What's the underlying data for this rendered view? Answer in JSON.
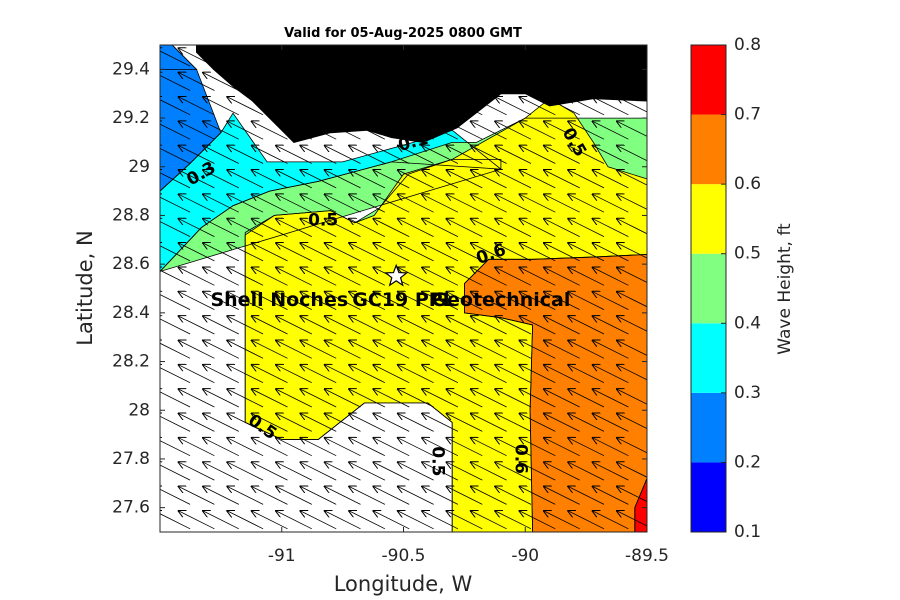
{
  "chart_data": {
    "type": "contour",
    "title": "Valid for 05-Aug-2025 0800 GMT",
    "xlabel": "Longitude, W",
    "ylabel": "Latitude, N",
    "xlim": [
      -91.5,
      -89.5
    ],
    "ylim": [
      27.5,
      29.5
    ],
    "x_ticks": [
      "-91",
      "-90.5",
      "-90",
      "-89.5"
    ],
    "x_tick_values": [
      -91,
      -90.5,
      -90,
      -89.5
    ],
    "y_ticks": [
      "27.6",
      "27.8",
      "28",
      "28.2",
      "28.4",
      "28.6",
      "28.8",
      "29",
      "29.2",
      "29.4"
    ],
    "y_tick_values": [
      27.6,
      27.8,
      28.0,
      28.2,
      28.4,
      28.6,
      28.8,
      29.0,
      29.2,
      29.4
    ],
    "colorbar": {
      "label": "Wave Height, ft",
      "levels": [
        0.1,
        0.2,
        0.3,
        0.4,
        0.5,
        0.6,
        0.7,
        0.8
      ],
      "tick_labels": [
        "0.1",
        "0.2",
        "0.3",
        "0.4",
        "0.5",
        "0.6",
        "0.7",
        "0.8"
      ],
      "colors": [
        "#0000ff",
        "#0080ff",
        "#00ffff",
        "#80ff80",
        "#ffff00",
        "#ff8000",
        "#ff0000"
      ]
    },
    "regions": [
      {
        "band": "0.1-0.2",
        "color": "#0000ff",
        "polygon": [
          [
            -91.5,
            29.5
          ],
          [
            -91.45,
            29.5
          ],
          [
            -91.35,
            29.4
          ],
          [
            -91.5,
            29.4
          ]
        ]
      },
      {
        "band": "0.2-0.3",
        "color": "#0080ff",
        "polygon": [
          [
            -91.45,
            29.5
          ],
          [
            -91.5,
            29.5
          ],
          [
            -91.5,
            28.9
          ],
          [
            -91.38,
            29.01
          ],
          [
            -91.25,
            29.14
          ],
          [
            -91.35,
            29.4
          ]
        ]
      },
      {
        "band": "0.3-0.4",
        "color": "#00ffff",
        "polygon": [
          [
            -91.5,
            28.9
          ],
          [
            -91.38,
            29.01
          ],
          [
            -91.25,
            29.14
          ],
          [
            -91.2,
            29.22
          ],
          [
            -91.06,
            29.02
          ],
          [
            -90.75,
            29.02
          ],
          [
            -90.46,
            29.1
          ],
          [
            -90.3,
            29.15
          ],
          [
            -90.1,
            28.99
          ],
          [
            -90.55,
            29.02
          ],
          [
            -90.85,
            28.94
          ],
          [
            -91.05,
            28.9
          ],
          [
            -91.2,
            28.84
          ],
          [
            -91.33,
            28.75
          ],
          [
            -91.5,
            28.57
          ]
        ]
      },
      {
        "band": "0.4-0.5",
        "color": "#80ff80",
        "polygon": [
          [
            -91.5,
            28.57
          ],
          [
            -91.33,
            28.75
          ],
          [
            -91.2,
            28.84
          ],
          [
            -91.05,
            28.9
          ],
          [
            -90.85,
            28.94
          ],
          [
            -90.55,
            29.02
          ],
          [
            -90.3,
            29.1
          ],
          [
            -90.2,
            29.1
          ],
          [
            -90.0,
            29.2
          ],
          [
            -89.5,
            29.2
          ],
          [
            -89.5,
            29.5
          ],
          [
            -89.5,
            27.5
          ],
          [
            -90.3,
            27.5
          ],
          [
            -90.3,
            27.95
          ],
          [
            -90.4,
            28.03
          ],
          [
            -90.66,
            28.03
          ],
          [
            -90.85,
            27.88
          ],
          [
            -91.0,
            27.88
          ],
          [
            -91.15,
            27.95
          ],
          [
            -91.15,
            28.73
          ],
          [
            -91.03,
            28.8
          ],
          [
            -90.8,
            28.82
          ],
          [
            -90.7,
            28.77
          ],
          [
            -90.6,
            28.83
          ],
          [
            -90.48,
            28.97
          ],
          [
            -90.3,
            29.03
          ],
          [
            -90.1,
            29.03
          ],
          [
            -90.1,
            28.99
          ]
        ]
      },
      {
        "band": "0.5-0.6",
        "color": "#ffff00",
        "polygon": [
          [
            -91.15,
            28.72
          ],
          [
            -91.03,
            28.8
          ],
          [
            -90.8,
            28.82
          ],
          [
            -90.7,
            28.77
          ],
          [
            -90.62,
            28.8
          ],
          [
            -90.5,
            28.97
          ],
          [
            -90.3,
            29.03
          ],
          [
            -90.0,
            29.2
          ],
          [
            -89.9,
            29.28
          ],
          [
            -89.8,
            29.22
          ],
          [
            -89.72,
            29.1
          ],
          [
            -89.66,
            29.0
          ],
          [
            -89.5,
            28.95
          ],
          [
            -89.5,
            28.64
          ],
          [
            -89.7,
            28.63
          ],
          [
            -89.97,
            28.62
          ],
          [
            -90.15,
            28.62
          ],
          [
            -90.25,
            28.52
          ],
          [
            -90.25,
            28.4
          ],
          [
            -90.1,
            28.38
          ],
          [
            -89.97,
            28.35
          ],
          [
            -89.98,
            28.0
          ],
          [
            -89.97,
            27.5
          ],
          [
            -90.3,
            27.5
          ],
          [
            -90.3,
            27.95
          ],
          [
            -90.4,
            28.03
          ],
          [
            -90.66,
            28.03
          ],
          [
            -90.85,
            27.88
          ],
          [
            -91.0,
            27.88
          ],
          [
            -91.15,
            27.95
          ]
        ]
      },
      {
        "band": "0.6-0.7",
        "color": "#ff8000",
        "polygon": [
          [
            -90.25,
            28.52
          ],
          [
            -90.15,
            28.62
          ],
          [
            -89.97,
            28.62
          ],
          [
            -89.7,
            28.63
          ],
          [
            -89.5,
            28.64
          ],
          [
            -89.5,
            27.72
          ],
          [
            -89.55,
            27.6
          ],
          [
            -89.55,
            27.5
          ],
          [
            -89.97,
            27.5
          ],
          [
            -89.98,
            28.0
          ],
          [
            -89.97,
            28.35
          ],
          [
            -90.1,
            28.38
          ],
          [
            -90.25,
            28.4
          ]
        ]
      },
      {
        "band": "0.7-0.8",
        "color": "#ff0000",
        "polygon": [
          [
            -89.5,
            27.72
          ],
          [
            -89.55,
            27.6
          ],
          [
            -89.55,
            27.5
          ],
          [
            -89.5,
            27.5
          ]
        ]
      }
    ],
    "land": [
      [
        [
          -91.35,
          29.5
        ],
        [
          -89.5,
          29.5
        ],
        [
          -89.5,
          29.27
        ],
        [
          -89.72,
          29.28
        ],
        [
          -89.9,
          29.25
        ],
        [
          -90.0,
          29.3
        ],
        [
          -90.1,
          29.3
        ],
        [
          -90.28,
          29.16
        ],
        [
          -90.42,
          29.1
        ],
        [
          -90.55,
          29.12
        ],
        [
          -90.65,
          29.15
        ],
        [
          -90.8,
          29.14
        ],
        [
          -90.95,
          29.1
        ],
        [
          -91.05,
          29.2
        ],
        [
          -91.12,
          29.27
        ],
        [
          -91.2,
          29.33
        ],
        [
          -91.28,
          29.4
        ],
        [
          -91.35,
          29.47
        ]
      ]
    ],
    "contour_labels": [
      {
        "text": "0.3",
        "x": -91.33,
        "y": 28.97,
        "angle": -30
      },
      {
        "text": "0.1",
        "x": -90.46,
        "y": 29.1,
        "angle": -15
      },
      {
        "text": "0.5",
        "x": -89.8,
        "y": 29.1,
        "angle": 60
      },
      {
        "text": "0.5",
        "x": -90.83,
        "y": 28.78,
        "angle": 0
      },
      {
        "text": "0.6",
        "x": -90.14,
        "y": 28.64,
        "angle": -20
      },
      {
        "text": "0.5",
        "x": -91.08,
        "y": 27.93,
        "angle": 35
      },
      {
        "text": "0.5",
        "x": -90.36,
        "y": 27.79,
        "angle": 90
      },
      {
        "text": "0.6",
        "x": -90.02,
        "y": 27.8,
        "angle": 90
      }
    ],
    "annotations": [
      {
        "text": "Shell Noches",
        "x": -91.01,
        "y": 28.45
      },
      {
        "text": "GC19 PPL",
        "x": -90.5,
        "y": 28.45
      },
      {
        "text": "Geotechnical",
        "x": -90.1,
        "y": 28.45
      }
    ],
    "marker": {
      "type": "star",
      "x": -90.53,
      "y": 28.55
    },
    "wave_direction": {
      "dx": -1,
      "dy": 0.5,
      "grid_step_x": 0.1,
      "grid_step_y": 0.1
    }
  }
}
